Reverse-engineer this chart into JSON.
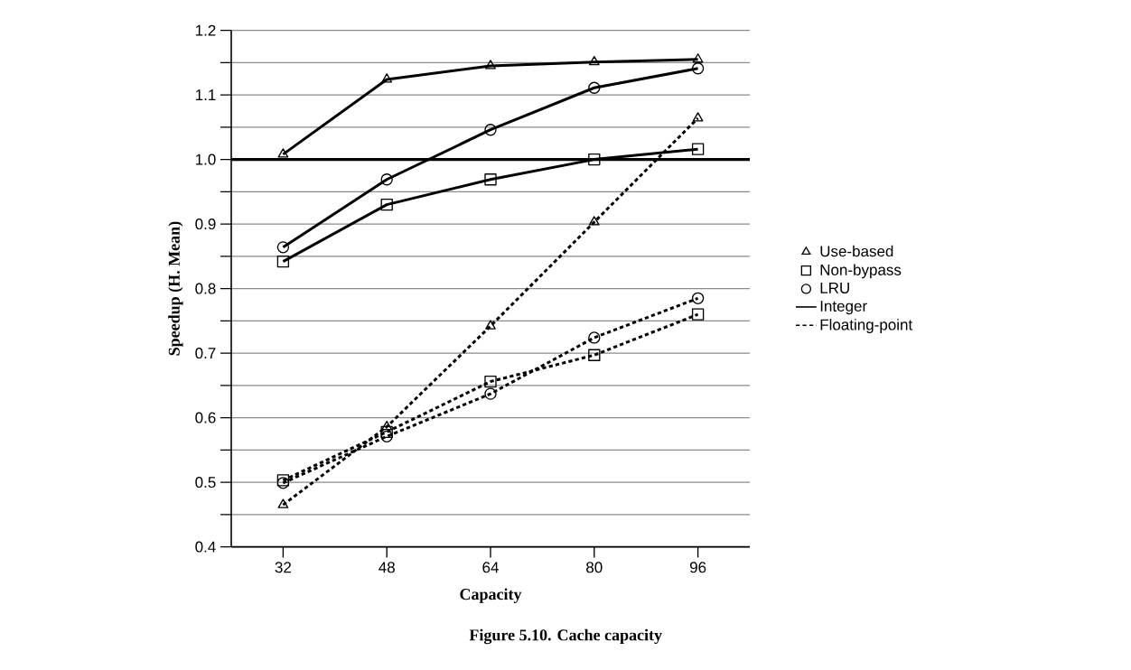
{
  "chart_data": {
    "type": "line",
    "title": "Figure 5.10.  Cache capacity",
    "xlabel": "Capacity",
    "ylabel": "Speedup (H. Mean)",
    "x": [
      32,
      48,
      64,
      80,
      96
    ],
    "series": [
      {
        "name": "Use-based",
        "color": "#000000",
        "marker": "triangle",
        "line_style": "solid",
        "values": [
          1.008,
          1.124,
          1.145,
          1.151,
          1.155
        ]
      },
      {
        "name": "Non-bypass",
        "color": "#000000",
        "marker": "square",
        "line_style": "solid",
        "values": [
          0.842,
          0.93,
          0.969,
          1.0,
          1.016
        ]
      },
      {
        "name": "LRU",
        "color": "#000000",
        "marker": "circle",
        "line_style": "solid",
        "values": [
          0.864,
          0.969,
          1.046,
          1.111,
          1.141
        ]
      },
      {
        "color": "#000000",
        "marker": "triangle",
        "line_style": "dashed",
        "values": [
          0.465,
          0.586,
          0.742,
          0.903,
          1.064
        ]
      },
      {
        "color": "#000000",
        "marker": "square",
        "line_style": "dashed",
        "values": [
          0.503,
          0.578,
          0.656,
          0.697,
          0.76
        ]
      },
      {
        "color": "#000000",
        "marker": "circle",
        "line_style": "dashed",
        "values": [
          0.499,
          0.571,
          0.637,
          0.724,
          0.785
        ]
      }
    ],
    "annotations": [
      "Integer",
      "Floating-point"
    ],
    "xlim": [
      24,
      104
    ],
    "xticks": [
      32,
      48,
      64,
      80,
      96
    ],
    "ylim": [
      0.4,
      1.2
    ],
    "yticks": [
      0.4,
      {
        "value": 0.45,
        "label": null
      },
      0.5,
      {
        "value": 0.55,
        "label": null
      },
      0.6,
      {
        "value": 0.65,
        "label": null
      },
      0.7,
      {
        "value": 0.75,
        "label": null
      },
      0.8,
      {
        "value": 0.85,
        "label": null
      },
      0.9,
      {
        "value": 0.95,
        "label": null
      },
      {
        "value": 1.0,
        "label": "1.0"
      },
      {
        "value": 1.05,
        "label": null
      },
      1.1,
      {
        "value": 1.15,
        "label": null
      },
      1.2
    ],
    "ref_lines": [
      {
        "axis": "y",
        "value": 1.0
      }
    ],
    "grid": "y",
    "legend": "right"
  }
}
